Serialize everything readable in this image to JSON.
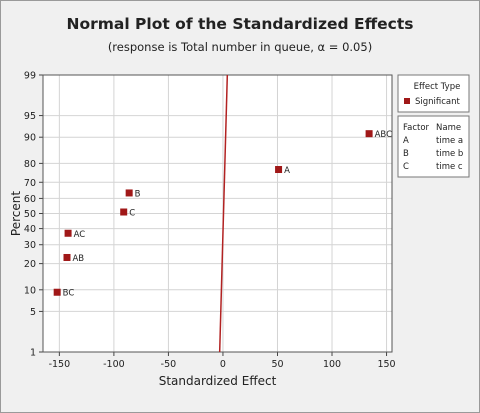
{
  "chart_data": {
    "type": "scatter",
    "title": "Normal Plot of the Standardized Effects",
    "subtitle": "(response is Total number in queue, α = 0.05)",
    "xlabel": "Standardized Effect",
    "ylabel": "Percent",
    "xlim": [
      -165,
      155
    ],
    "ylim_percent": [
      1,
      99
    ],
    "y_scale": "normal-probability",
    "x_ticks": [
      -150,
      -100,
      -50,
      0,
      50,
      100,
      150
    ],
    "x_tick_labels": [
      "-150",
      "-100",
      "-50",
      "0",
      "50",
      "100",
      "150"
    ],
    "y_ticks": [
      1,
      5,
      10,
      20,
      30,
      40,
      50,
      60,
      70,
      80,
      90,
      95,
      99
    ],
    "y_tick_labels": [
      "1",
      "5",
      "10",
      "20",
      "30",
      "40",
      "50",
      "60",
      "70",
      "80",
      "90",
      "95",
      "99"
    ],
    "grid": true,
    "legend_position": "right",
    "legend": {
      "heading": "Effect Type",
      "entries": [
        "Significant"
      ]
    },
    "factor_table": {
      "headers": [
        "Factor",
        "Name"
      ],
      "rows": [
        [
          "A",
          "time a"
        ],
        [
          "B",
          "time b"
        ],
        [
          "C",
          "time c"
        ]
      ]
    },
    "points": [
      {
        "label": "BC",
        "x": -152,
        "percent": 9.3
      },
      {
        "label": "AB",
        "x": -143,
        "percent": 23.0
      },
      {
        "label": "AC",
        "x": -142,
        "percent": 37.0
      },
      {
        "label": "C",
        "x": -91,
        "percent": 51.0
      },
      {
        "label": "B",
        "x": -86,
        "percent": 63.5
      },
      {
        "label": "A",
        "x": 51,
        "percent": 77.0
      },
      {
        "label": "ABC",
        "x": 134,
        "percent": 91.0
      }
    ],
    "reference_line": {
      "x_at_1": -3,
      "x_at_99": 4
    }
  },
  "colors": {
    "point": "#a01818",
    "reference_line": "#b22222",
    "plot_background": "#ffffff",
    "frame_background": "#f0f0f0",
    "grid": "#d4d4d4"
  }
}
